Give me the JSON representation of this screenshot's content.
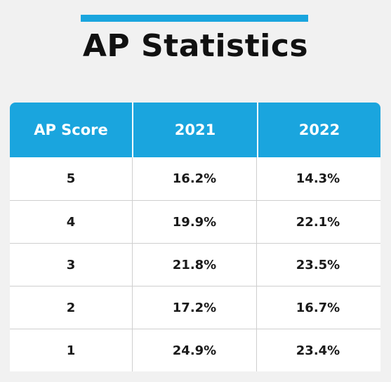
{
  "chart_data": {
    "type": "table",
    "title": "AP Statistics",
    "columns": [
      "AP Score",
      "2021",
      "2022"
    ],
    "rows": [
      {
        "score": "5",
        "y2021": "16.2%",
        "y2022": "14.3%"
      },
      {
        "score": "4",
        "y2021": "19.9%",
        "y2022": "22.1%"
      },
      {
        "score": "3",
        "y2021": "21.8%",
        "y2022": "23.5%"
      },
      {
        "score": "2",
        "y2021": "17.2%",
        "y2022": "16.7%"
      },
      {
        "score": "1",
        "y2021": "24.9%",
        "y2022": "23.4%"
      }
    ]
  },
  "colors": {
    "accent": "#1aa5de",
    "background": "#f1f1f1",
    "text": "#111111"
  }
}
